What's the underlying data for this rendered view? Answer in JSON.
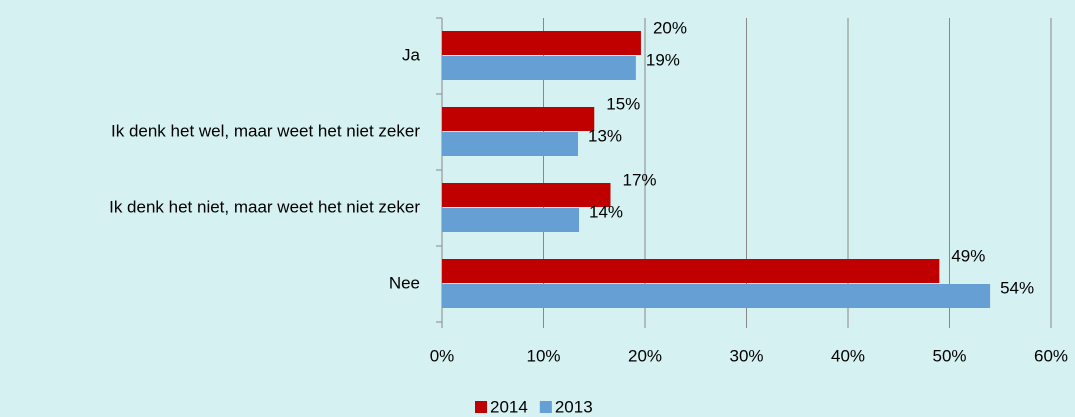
{
  "chart_data": {
    "type": "hbar",
    "categories": [
      "Ja",
      "Ik denk het wel, maar weet het niet zeker",
      "Ik denk het niet, maar weet het niet zeker",
      "Nee"
    ],
    "series": [
      {
        "name": "2014",
        "color": "#c00000",
        "values": [
          19.6,
          15.0,
          16.6,
          49
        ],
        "value_labels": [
          "20%",
          "15%",
          "17%",
          "49%"
        ]
      },
      {
        "name": "2013",
        "color": "#659fd3",
        "values": [
          19.1,
          13.4,
          13.5,
          54
        ],
        "value_labels": [
          "19%",
          "13%",
          "14%",
          "54%"
        ]
      }
    ],
    "xlim": [
      0,
      60
    ],
    "xticks": [
      {
        "value": 0,
        "label": "0%"
      },
      {
        "value": 10,
        "label": "10%"
      },
      {
        "value": 20,
        "label": "20%"
      },
      {
        "value": 30,
        "label": "30%"
      },
      {
        "value": 40,
        "label": "40%"
      },
      {
        "value": 50,
        "label": "50%"
      },
      {
        "value": 60,
        "label": "60%"
      }
    ],
    "grid": true,
    "legend": "bottom"
  }
}
